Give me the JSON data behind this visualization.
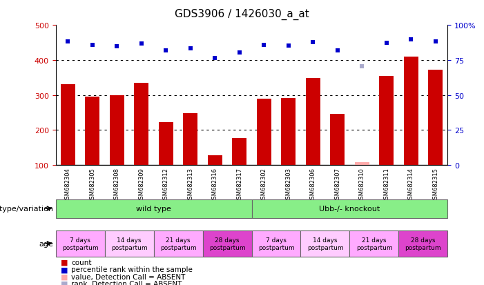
{
  "title": "GDS3906 / 1426030_a_at",
  "samples": [
    "GSM682304",
    "GSM682305",
    "GSM682308",
    "GSM682309",
    "GSM682312",
    "GSM682313",
    "GSM682316",
    "GSM682317",
    "GSM682302",
    "GSM682303",
    "GSM682306",
    "GSM682307",
    "GSM682310",
    "GSM682311",
    "GSM682314",
    "GSM682315"
  ],
  "bar_values": [
    330,
    295,
    300,
    335,
    222,
    248,
    128,
    178,
    290,
    292,
    348,
    246,
    108,
    354,
    410,
    372
  ],
  "bar_absent": [
    false,
    false,
    false,
    false,
    false,
    false,
    false,
    false,
    false,
    false,
    false,
    false,
    true,
    false,
    false,
    false
  ],
  "rank_values": [
    453,
    443,
    440,
    447,
    428,
    433,
    405,
    422,
    443,
    442,
    452,
    428,
    383,
    450,
    460,
    453
  ],
  "rank_absent": [
    false,
    false,
    false,
    false,
    false,
    false,
    false,
    false,
    false,
    false,
    false,
    false,
    true,
    false,
    false,
    false
  ],
  "bar_color": "#cc0000",
  "bar_absent_color": "#ffaaaa",
  "rank_color": "#0000cc",
  "rank_absent_color": "#aaaacc",
  "ylim_left": [
    100,
    500
  ],
  "ylim_right": [
    0,
    100
  ],
  "yticks_left": [
    100,
    200,
    300,
    400,
    500
  ],
  "yticks_right": [
    0,
    25,
    50,
    75,
    100
  ],
  "ytick_labels_right": [
    "0",
    "25",
    "50",
    "75",
    "100%"
  ],
  "grid_values": [
    200,
    300,
    400
  ],
  "genotype_ranges": [
    [
      0,
      8
    ],
    [
      8,
      16
    ]
  ],
  "genotype_labels": [
    "wild type",
    "Ubb-/- knockout"
  ],
  "genotype_color": "#88ee88",
  "age_ranges": [
    [
      0,
      2
    ],
    [
      2,
      4
    ],
    [
      4,
      6
    ],
    [
      6,
      8
    ],
    [
      8,
      10
    ],
    [
      10,
      12
    ],
    [
      12,
      14
    ],
    [
      14,
      16
    ]
  ],
  "age_labels": [
    "7 days\npostpartum",
    "14 days\npostpartum",
    "21 days\npostpartum",
    "28 days\npostpartum",
    "7 days\npostpartum",
    "14 days\npostpartum",
    "21 days\npostpartum",
    "28 days\npostpartum"
  ],
  "age_colors": [
    "#ffaaff",
    "#ffccff",
    "#ffaaff",
    "#dd44cc",
    "#ffaaff",
    "#ffccff",
    "#ffaaff",
    "#dd44cc"
  ],
  "legend_items": [
    {
      "label": "count",
      "color": "#cc0000"
    },
    {
      "label": "percentile rank within the sample",
      "color": "#0000cc"
    },
    {
      "label": "value, Detection Call = ABSENT",
      "color": "#ffaaaa"
    },
    {
      "label": "rank, Detection Call = ABSENT",
      "color": "#aaaacc"
    }
  ],
  "xlabel_genotype": "genotype/variation",
  "xlabel_age": "age",
  "bg_color": "#dddddd"
}
